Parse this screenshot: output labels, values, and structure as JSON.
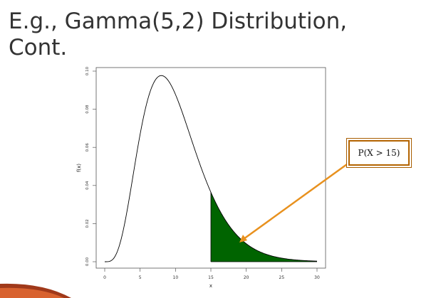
{
  "slide": {
    "title_line1": "E.g., Gamma(5,2) Distribution,",
    "title_line2": "Cont.",
    "callout_text": "P(X > 15)",
    "callout_border_color": "#b36300",
    "arrow_color": "#e8911e"
  },
  "chart_data": {
    "type": "area",
    "title": "",
    "xlabel": "x",
    "ylabel": "f(x)",
    "xlim": [
      0,
      30
    ],
    "ylim": [
      0,
      0.1
    ],
    "distribution": {
      "name": "Gamma",
      "shape": 5,
      "scale": 2
    },
    "x_ticks": [
      0,
      5,
      10,
      15,
      20,
      25,
      30
    ],
    "y_ticks": [
      0.0,
      0.02,
      0.04,
      0.06,
      0.08,
      0.1
    ],
    "y_tick_labels": [
      "0.00",
      "0.02",
      "0.04",
      "0.06",
      "0.08",
      "0.10"
    ],
    "shaded_region": {
      "from": 15,
      "to": 30,
      "color": "#006400"
    },
    "curve_color": "#000000",
    "grid": false
  }
}
